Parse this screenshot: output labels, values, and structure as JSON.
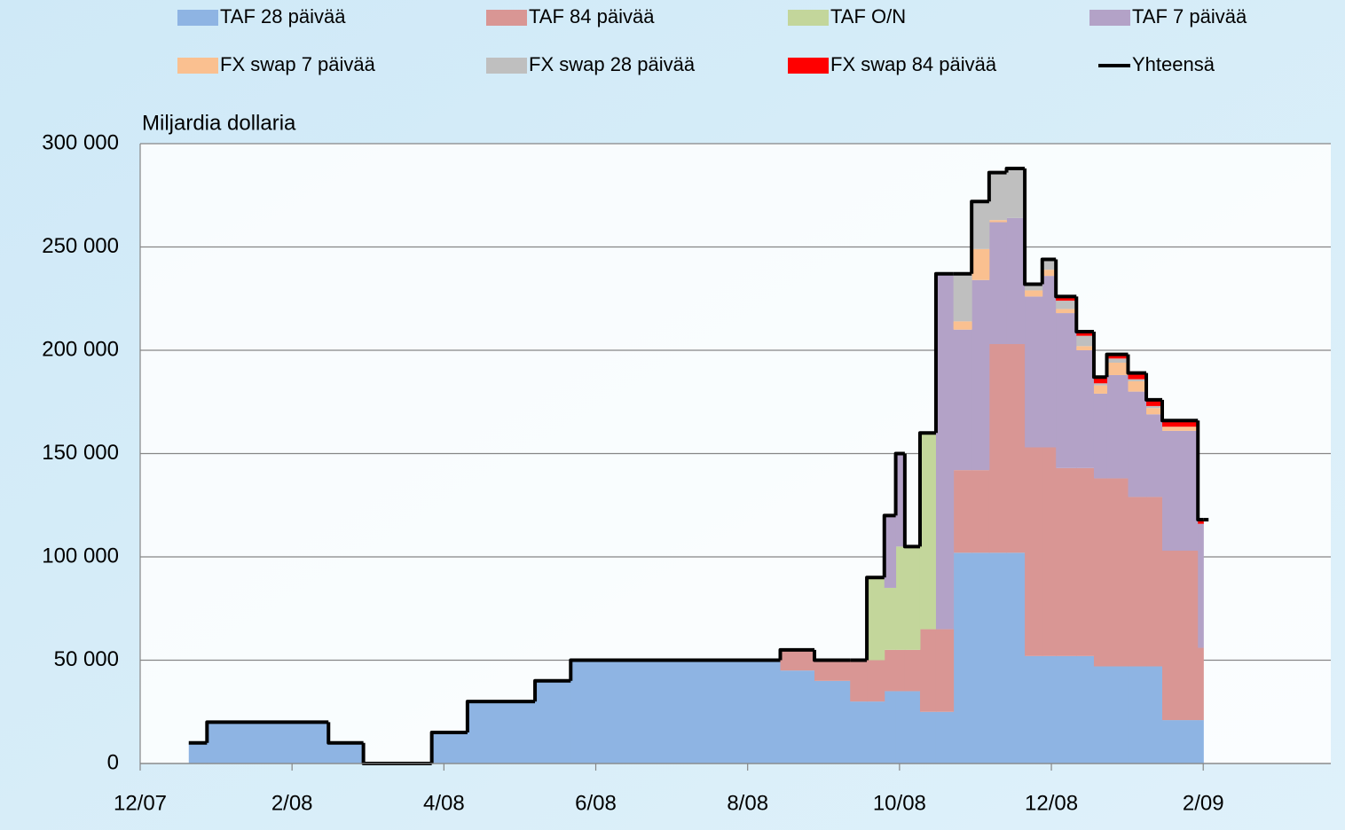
{
  "chart_data": {
    "type": "area",
    "stacked": true,
    "step": "post",
    "y_label": "Miljardia dollaria",
    "x": [
      0.64,
      0.88,
      2.48,
      2.94,
      3.84,
      4.31,
      5.2,
      5.67,
      8.43,
      8.88,
      9.35,
      9.57,
      9.8,
      9.95,
      10.07,
      10.27,
      10.48,
      10.71,
      10.95,
      11.18,
      11.41,
      11.65,
      11.88,
      12.06,
      12.33,
      12.56,
      12.73,
      13.01,
      13.25,
      13.46,
      13.93,
      14.0
    ],
    "xlim": [
      0,
      15.68
    ],
    "xticks": [
      {
        "value": 0,
        "label": "12/07"
      },
      {
        "value": 2,
        "label": "2/08"
      },
      {
        "value": 4,
        "label": "4/08"
      },
      {
        "value": 6,
        "label": "6/08"
      },
      {
        "value": 8,
        "label": "8/08"
      },
      {
        "value": 10,
        "label": "10/08"
      },
      {
        "value": 12,
        "label": "12/08"
      },
      {
        "value": 14,
        "label": "2/09"
      }
    ],
    "ylim": [
      0,
      300000
    ],
    "yticks": [
      {
        "value": 0,
        "label": "0"
      },
      {
        "value": 50000,
        "label": "50 000"
      },
      {
        "value": 100000,
        "label": "100 000"
      },
      {
        "value": 150000,
        "label": "150 000"
      },
      {
        "value": 200000,
        "label": "200 000"
      },
      {
        "value": 250000,
        "label": "250 000"
      },
      {
        "value": 300000,
        "label": "300 000"
      }
    ],
    "grid": true,
    "series": [
      {
        "name": "TAF 28 päivää",
        "color": "#8eb4e3",
        "values": [
          10000,
          20000,
          10000,
          0,
          15000,
          30000,
          40000,
          50000,
          45000,
          40000,
          30000,
          30000,
          35000,
          35000,
          35000,
          25000,
          25000,
          102000,
          102000,
          102000,
          102000,
          52000,
          52000,
          52000,
          52000,
          47000,
          47000,
          47000,
          47000,
          21000,
          21000,
          21000
        ]
      },
      {
        "name": "TAF 84 päivää",
        "color": "#d99694",
        "values": [
          0,
          0,
          0,
          0,
          0,
          0,
          0,
          0,
          10000,
          10000,
          20000,
          20000,
          20000,
          20000,
          20000,
          40000,
          40000,
          40000,
          40000,
          101000,
          101000,
          101000,
          101000,
          91000,
          91000,
          91000,
          91000,
          82000,
          82000,
          82000,
          35000,
          35000
        ]
      },
      {
        "name": "TAF O/N",
        "color": "#c3d69b",
        "values": [
          0,
          0,
          0,
          0,
          0,
          0,
          0,
          0,
          0,
          0,
          0,
          40000,
          30000,
          50000,
          50000,
          95000,
          0,
          0,
          0,
          0,
          0,
          0,
          0,
          0,
          0,
          0,
          0,
          0,
          0,
          0,
          0,
          0
        ]
      },
      {
        "name": "TAF 7 päivää",
        "color": "#b3a2c7",
        "values": [
          0,
          0,
          0,
          0,
          0,
          0,
          0,
          0,
          0,
          0,
          0,
          0,
          35000,
          45000,
          0,
          0,
          172000,
          68000,
          92000,
          59000,
          61000,
          73000,
          83000,
          75000,
          57000,
          41000,
          50000,
          51000,
          40000,
          58000,
          60000,
          60000
        ]
      },
      {
        "name": "FX swap 7 päivää",
        "color": "#fac090",
        "values": [
          0,
          0,
          0,
          0,
          0,
          0,
          0,
          0,
          0,
          0,
          0,
          0,
          0,
          0,
          0,
          0,
          0,
          4000,
          15000,
          1000,
          0,
          3000,
          3000,
          2000,
          2000,
          4000,
          6000,
          5000,
          3000,
          2000,
          0,
          0
        ]
      },
      {
        "name": "FX swap 28 päivää",
        "color": "#bfbfbf",
        "values": [
          0,
          0,
          0,
          0,
          0,
          0,
          0,
          0,
          0,
          0,
          0,
          0,
          0,
          0,
          0,
          0,
          0,
          23000,
          23000,
          23000,
          24000,
          3000,
          5000,
          4000,
          5000,
          1000,
          2000,
          1000,
          1000,
          0,
          0,
          0
        ]
      },
      {
        "name": "FX swap 84 päivää",
        "color": "#ff0000",
        "values": [
          0,
          0,
          0,
          0,
          0,
          0,
          0,
          0,
          0,
          0,
          0,
          0,
          0,
          0,
          0,
          0,
          0,
          0,
          0,
          0,
          0,
          0,
          0,
          2000,
          2000,
          3000,
          2000,
          3000,
          3000,
          3000,
          2000,
          2000
        ]
      },
      {
        "name": "Yhteensä",
        "color": "#000000",
        "kind": "line",
        "values": [
          10000,
          20000,
          10000,
          0,
          15000,
          30000,
          40000,
          50000,
          55000,
          50000,
          50000,
          90000,
          120000,
          150000,
          105000,
          160000,
          237000,
          237000,
          272000,
          286000,
          288000,
          232000,
          244000,
          226000,
          209000,
          187000,
          198000,
          189000,
          176000,
          166000,
          118000,
          118000
        ]
      }
    ]
  }
}
